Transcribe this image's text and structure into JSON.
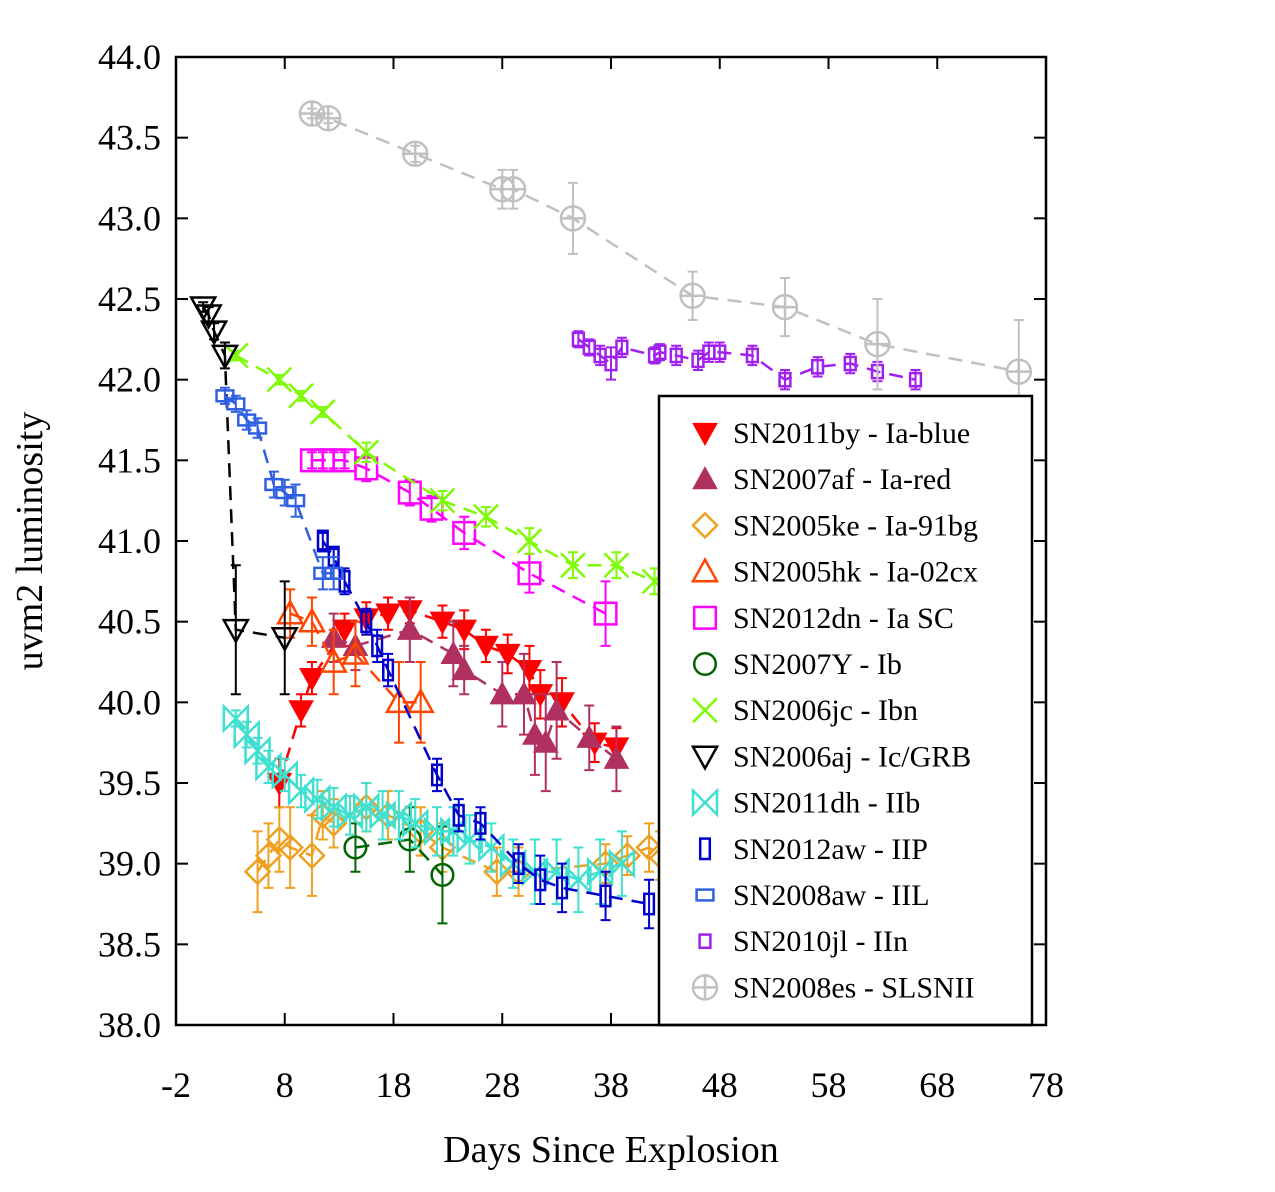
{
  "chart_data": {
    "type": "scatter",
    "xlabel": "Days Since Explosion",
    "ylabel": "uvm2 luminosity",
    "xlim": [
      -2,
      78
    ],
    "ylim": [
      38.0,
      44.0
    ],
    "xticks": [
      "-2",
      "8",
      "18",
      "28",
      "38",
      "48",
      "58",
      "68",
      "78"
    ],
    "yticks": [
      "38.0",
      "38.5",
      "39.0",
      "39.5",
      "40.0",
      "40.5",
      "41.0",
      "41.5",
      "42.0",
      "42.5",
      "43.0",
      "43.5",
      "44.0"
    ],
    "grid": false,
    "legend_position": "lower-right",
    "series": [
      {
        "name": "SN2011by - Ia-blue",
        "color": "#ff0000",
        "marker": "triangle-down-filled",
        "x": [
          7.5,
          9.5,
          10.5,
          13.5,
          15.5,
          17.5,
          19.5,
          22.5,
          24.5,
          26.5,
          28.5,
          30.5,
          31.5,
          33.5,
          36.5,
          38.5
        ],
        "y": [
          39.5,
          39.95,
          40.15,
          40.45,
          40.52,
          40.55,
          40.57,
          40.5,
          40.45,
          40.35,
          40.3,
          40.2,
          40.05,
          40.0,
          39.75,
          39.72
        ],
        "err": [
          0.15,
          0.1,
          0.1,
          0.1,
          0.1,
          0.1,
          0.08,
          0.1,
          0.12,
          0.1,
          0.12,
          0.15,
          0.15,
          0.15,
          0.12,
          0.12
        ]
      },
      {
        "name": "SN2007af - Ia-red",
        "color": "#b03060",
        "marker": "triangle-up-filled",
        "x": [
          12.5,
          14.5,
          19.5,
          23.5,
          24.5,
          28,
          30,
          31,
          32,
          33,
          36,
          38.5
        ],
        "y": [
          40.4,
          40.35,
          40.45,
          40.3,
          40.2,
          40.05,
          40.05,
          39.8,
          39.75,
          39.95,
          39.78,
          39.65
        ],
        "err": [
          0.15,
          0.15,
          0.2,
          0.2,
          0.15,
          0.2,
          0.25,
          0.25,
          0.3,
          0.3,
          0.2,
          0.2
        ]
      },
      {
        "name": "SN2005ke - Ia-91bg",
        "color": "#f0a020",
        "marker": "diamond-open",
        "x": [
          5.5,
          6.5,
          7.5,
          8.5,
          10.5,
          11.5,
          12.5,
          15.5,
          17.5,
          20.5,
          22.5,
          27.5,
          29.5,
          37.5,
          39.5,
          41.5,
          42.5
        ],
        "y": [
          38.95,
          39.05,
          39.15,
          39.1,
          39.05,
          39.3,
          39.25,
          39.35,
          39.3,
          39.2,
          39.1,
          38.95,
          38.95,
          39.0,
          39.05,
          39.1,
          39.05
        ],
        "err": [
          0.25,
          0.2,
          0.2,
          0.25,
          0.25,
          0.15,
          0.15,
          0.15,
          0.15,
          0.15,
          0.15,
          0.15,
          0.15,
          0.12,
          0.12,
          0.15,
          0.15
        ]
      },
      {
        "name": "SN2005hk - Ia-02cx",
        "color": "#ff4500",
        "marker": "triangle-up-open",
        "x": [
          8.5,
          10.5,
          12.5,
          14.5,
          18.5,
          20.5
        ],
        "y": [
          40.55,
          40.5,
          40.25,
          40.3,
          40.0,
          40.0
        ],
        "err": [
          0.15,
          0.15,
          0.2,
          0.2,
          0.25,
          0.25
        ]
      },
      {
        "name": "SN2012dn - Ia SC",
        "color": "#ff00ff",
        "marker": "square-open",
        "x": [
          10.5,
          11.5,
          12.5,
          13.5,
          15.5,
          19.5,
          21.5,
          24.5,
          30.5,
          37.5
        ],
        "y": [
          41.5,
          41.5,
          41.5,
          41.5,
          41.45,
          41.3,
          41.2,
          41.05,
          40.8,
          40.55
        ],
        "err": [
          0.05,
          0.05,
          0.05,
          0.05,
          0.08,
          0.08,
          0.08,
          0.1,
          0.12,
          0.2
        ]
      },
      {
        "name": "SN2007Y - Ib",
        "color": "#006400",
        "marker": "circle-open",
        "x": [
          14.5,
          19.5,
          22.5
        ],
        "y": [
          39.1,
          39.15,
          38.93
        ],
        "err": [
          0.15,
          0.2,
          0.3
        ]
      },
      {
        "name": "SN2006jc - Ibn",
        "color": "#7cfc00",
        "marker": "x",
        "x": [
          3.5,
          7.5,
          9.5,
          11.5,
          15.5,
          22.5,
          26.5,
          30.5,
          34.5,
          38.5,
          42
        ],
        "y": [
          42.15,
          42.0,
          41.9,
          41.8,
          41.55,
          41.25,
          41.15,
          41.0,
          40.85,
          40.85,
          40.75
        ],
        "err": [
          0.03,
          0.03,
          0.03,
          0.03,
          0.06,
          0.06,
          0.06,
          0.08,
          0.08,
          0.08,
          0.08
        ]
      },
      {
        "name": "SN2006aj - Ic/GRB",
        "color": "#000000",
        "marker": "triangle-down-open",
        "x": [
          0.5,
          1.0,
          1.5,
          2.5,
          3.5,
          8
        ],
        "y": [
          42.45,
          42.4,
          42.3,
          42.15,
          40.45,
          40.4
        ],
        "err": [
          0.03,
          0.05,
          0.05,
          0.08,
          0.4,
          0.35
        ]
      },
      {
        "name": "SN2011dh - IIb",
        "color": "#40e0d0",
        "marker": "bowtie",
        "x": [
          3.5,
          4.5,
          5.5,
          6.5,
          8,
          9.5,
          11,
          12.5,
          14,
          15.5,
          17,
          18.5,
          20,
          22,
          23.5,
          25,
          27,
          29,
          31,
          33,
          35,
          37,
          39
        ],
        "y": [
          39.9,
          39.8,
          39.7,
          39.6,
          39.55,
          39.45,
          39.4,
          39.35,
          39.3,
          39.35,
          39.3,
          39.3,
          39.25,
          39.2,
          39.2,
          39.15,
          39.1,
          39.0,
          38.95,
          38.95,
          38.9,
          38.95,
          39.0
        ],
        "err": [
          0.05,
          0.08,
          0.08,
          0.1,
          0.1,
          0.1,
          0.12,
          0.12,
          0.12,
          0.15,
          0.15,
          0.15,
          0.15,
          0.15,
          0.15,
          0.15,
          0.15,
          0.15,
          0.2,
          0.2,
          0.2,
          0.2,
          0.2
        ]
      },
      {
        "name": "SN2012aw - IIP",
        "color": "#0000cd",
        "marker": "narrow-rect",
        "x": [
          11.5,
          12.5,
          13.5,
          15.5,
          16.5,
          17.5,
          22,
          24,
          26,
          29.5,
          31.5,
          33.5,
          37.5,
          41.5
        ],
        "y": [
          41.0,
          40.9,
          40.75,
          40.5,
          40.35,
          40.2,
          39.55,
          39.3,
          39.25,
          39.0,
          38.9,
          38.85,
          38.8,
          38.75
        ],
        "err": [
          0.05,
          0.05,
          0.08,
          0.08,
          0.1,
          0.1,
          0.1,
          0.1,
          0.1,
          0.12,
          0.15,
          0.15,
          0.15,
          0.15
        ]
      },
      {
        "name": "SN2008aw - IIL",
        "color": "#3060e0",
        "marker": "wide-rect",
        "x": [
          2.5,
          3.5,
          4.5,
          5.5,
          7.0,
          8.0,
          9.0,
          11.5,
          12.5
        ],
        "y": [
          41.9,
          41.85,
          41.75,
          41.7,
          41.35,
          41.3,
          41.25,
          40.8,
          40.8
        ],
        "err": [
          0.05,
          0.05,
          0.06,
          0.06,
          0.08,
          0.08,
          0.1,
          0.1,
          0.1
        ]
      },
      {
        "name": "SN2010jl - IIn",
        "color": "#a020f0",
        "marker": "small-rect",
        "x": [
          35,
          36,
          37,
          38,
          39,
          42,
          42.5,
          44,
          46,
          47,
          48,
          51,
          54,
          57,
          60,
          62.5,
          66
        ],
        "y": [
          42.25,
          42.2,
          42.15,
          42.1,
          42.2,
          42.15,
          42.17,
          42.15,
          42.12,
          42.17,
          42.17,
          42.15,
          42.0,
          42.08,
          42.1,
          42.05,
          42.0
        ],
        "err": [
          0.05,
          0.05,
          0.06,
          0.1,
          0.06,
          0.05,
          0.05,
          0.06,
          0.06,
          0.06,
          0.06,
          0.06,
          0.06,
          0.06,
          0.06,
          0.06,
          0.06
        ]
      },
      {
        "name": "SN2008es - SLSNII",
        "color": "#c0c0c0",
        "marker": "circle-plus",
        "x": [
          10.5,
          12,
          20,
          28,
          29,
          34.5,
          45.5,
          54,
          62.5,
          75.5
        ],
        "y": [
          43.65,
          43.62,
          43.4,
          43.18,
          43.18,
          43.0,
          42.52,
          42.45,
          42.22,
          42.05
        ],
        "err": [
          0.03,
          0.03,
          0.05,
          0.12,
          0.12,
          0.22,
          0.15,
          0.18,
          0.28,
          0.32
        ]
      }
    ]
  }
}
